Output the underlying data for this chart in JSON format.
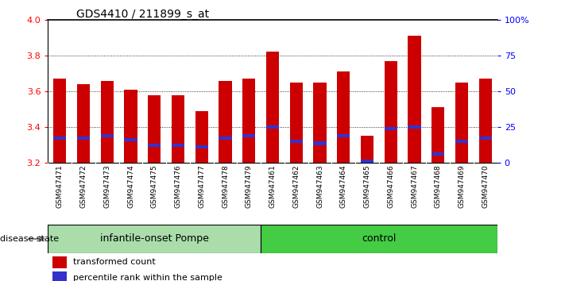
{
  "title": "GDS4410 / 211899_s_at",
  "samples": [
    "GSM947471",
    "GSM947472",
    "GSM947473",
    "GSM947474",
    "GSM947475",
    "GSM947476",
    "GSM947477",
    "GSM947478",
    "GSM947479",
    "GSM947461",
    "GSM947462",
    "GSM947463",
    "GSM947464",
    "GSM947465",
    "GSM947466",
    "GSM947467",
    "GSM947468",
    "GSM947469",
    "GSM947470"
  ],
  "bar_values": [
    3.67,
    3.64,
    3.66,
    3.61,
    3.58,
    3.58,
    3.49,
    3.66,
    3.67,
    3.82,
    3.65,
    3.65,
    3.71,
    3.35,
    3.77,
    3.91,
    3.51,
    3.65,
    3.67
  ],
  "blue_values": [
    3.34,
    3.34,
    3.35,
    3.33,
    3.3,
    3.3,
    3.29,
    3.34,
    3.35,
    3.4,
    3.32,
    3.31,
    3.35,
    3.21,
    3.39,
    3.4,
    3.25,
    3.32,
    3.34
  ],
  "bar_color": "#cc0000",
  "blue_color": "#3333cc",
  "ymin": 3.2,
  "ymax": 4.0,
  "yticks": [
    3.2,
    3.4,
    3.6,
    3.8,
    4.0
  ],
  "right_yticks_pct": [
    0,
    25,
    50,
    75,
    100
  ],
  "right_yticklabels": [
    "0",
    "25",
    "50",
    "75",
    "100%"
  ],
  "group1_label": "infantile-onset Pompe",
  "group2_label": "control",
  "group1_count": 9,
  "group2_count": 10,
  "disease_label": "disease state",
  "legend1": "transformed count",
  "legend2": "percentile rank within the sample",
  "group1_color": "#aaddaa",
  "group2_color": "#44cc44",
  "bg_color": "#cccccc",
  "bar_width": 0.55
}
